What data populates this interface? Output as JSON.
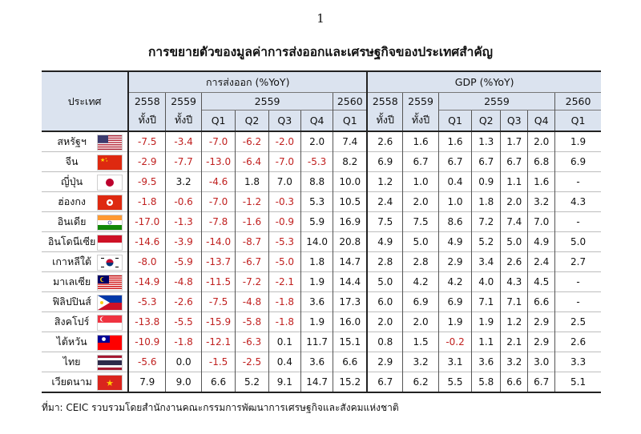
{
  "page_number": "1",
  "title": "การขยายตัวของมูลค่าการส่งออกและเศรษฐกิจของประเทศสำคัญ",
  "header": {
    "country": "ประเทศ",
    "exports_group": "การส่งออก (%YoY)",
    "gdp_group": "GDP (%YoY)",
    "years": {
      "y2558": "2558",
      "y2559": "2559",
      "y2560": "2560"
    },
    "full_year": "ทั้งปี",
    "quarters": {
      "q1": "Q1",
      "q2": "Q2",
      "q3": "Q3",
      "q4": "Q4"
    }
  },
  "rows": [
    {
      "country": "สหรัฐฯ",
      "flag": "us-flag",
      "exports": [
        "-7.5",
        "-3.4",
        "-7.0",
        "-6.2",
        "-2.0",
        "2.0",
        "7.4"
      ],
      "gdp": [
        "2.6",
        "1.6",
        "1.6",
        "1.3",
        "1.7",
        "2.0",
        "1.9"
      ]
    },
    {
      "country": "จีน",
      "flag": "china-flag",
      "exports": [
        "-2.9",
        "-7.7",
        "-13.0",
        "-6.4",
        "-7.0",
        "-5.3",
        "8.2"
      ],
      "gdp": [
        "6.9",
        "6.7",
        "6.7",
        "6.7",
        "6.7",
        "6.8",
        "6.9"
      ]
    },
    {
      "country": "ญี่ปุ่น",
      "flag": "japan-flag",
      "exports": [
        "-9.5",
        "3.2",
        "-4.6",
        "1.8",
        "7.0",
        "8.8",
        "10.0"
      ],
      "gdp": [
        "1.2",
        "1.0",
        "0.4",
        "0.9",
        "1.1",
        "1.6",
        "-"
      ]
    },
    {
      "country": "ฮ่องกง",
      "flag": "hong-kong-flag",
      "exports": [
        "-1.8",
        "-0.6",
        "-7.0",
        "-1.2",
        "-0.3",
        "5.3",
        "10.5"
      ],
      "gdp": [
        "2.4",
        "2.0",
        "1.0",
        "1.8",
        "2.0",
        "3.2",
        "4.3"
      ]
    },
    {
      "country": "อินเดีย",
      "flag": "india-flag",
      "exports": [
        "-17.0",
        "-1.3",
        "-7.8",
        "-1.6",
        "-0.9",
        "5.9",
        "16.9"
      ],
      "gdp": [
        "7.5",
        "7.5",
        "8.6",
        "7.2",
        "7.4",
        "7.0",
        "-"
      ]
    },
    {
      "country": "อินโดนีเซีย",
      "flag": "indonesia-flag",
      "exports": [
        "-14.6",
        "-3.9",
        "-14.0",
        "-8.7",
        "-5.3",
        "14.0",
        "20.8"
      ],
      "gdp": [
        "4.9",
        "5.0",
        "4.9",
        "5.2",
        "5.0",
        "4.9",
        "5.0"
      ]
    },
    {
      "country": "เกาหลีใต้",
      "flag": "south-korea-flag",
      "exports": [
        "-8.0",
        "-5.9",
        "-13.7",
        "-6.7",
        "-5.0",
        "1.8",
        "14.7"
      ],
      "gdp": [
        "2.8",
        "2.8",
        "2.9",
        "3.4",
        "2.6",
        "2.4",
        "2.7"
      ]
    },
    {
      "country": "มาเลเซีย",
      "flag": "malaysia-flag",
      "exports": [
        "-14.9",
        "-4.8",
        "-11.5",
        "-7.2",
        "-2.1",
        "1.9",
        "14.4"
      ],
      "gdp": [
        "5.0",
        "4.2",
        "4.2",
        "4.0",
        "4.3",
        "4.5",
        "-"
      ]
    },
    {
      "country": "ฟิลิปปินส์",
      "flag": "philippines-flag",
      "exports": [
        "-5.3",
        "-2.6",
        "-7.5",
        "-4.8",
        "-1.8",
        "3.6",
        "17.3"
      ],
      "gdp": [
        "6.0",
        "6.9",
        "6.9",
        "7.1",
        "7.1",
        "6.6",
        "-"
      ]
    },
    {
      "country": "สิงคโปร์",
      "flag": "singapore-flag",
      "exports": [
        "-13.8",
        "-5.5",
        "-15.9",
        "-5.8",
        "-1.8",
        "1.9",
        "16.0"
      ],
      "gdp": [
        "2.0",
        "2.0",
        "1.9",
        "1.9",
        "1.2",
        "2.9",
        "2.5"
      ]
    },
    {
      "country": "ไต้หวัน",
      "flag": "taiwan-flag",
      "exports": [
        "-10.9",
        "-1.8",
        "-12.1",
        "-6.3",
        "0.1",
        "11.7",
        "15.1"
      ],
      "gdp": [
        "0.8",
        "1.5",
        "-0.2",
        "1.1",
        "2.1",
        "2.9",
        "2.6"
      ]
    },
    {
      "country": "ไทย",
      "flag": "thailand-flag",
      "exports": [
        "-5.6",
        "0.0",
        "-1.5",
        "-2.5",
        "0.4",
        "3.6",
        "6.6"
      ],
      "gdp": [
        "2.9",
        "3.2",
        "3.1",
        "3.6",
        "3.2",
        "3.0",
        "3.3"
      ]
    },
    {
      "country": "เวียดนาม",
      "flag": "vietnam-flag",
      "exports": [
        "7.9",
        "9.0",
        "6.6",
        "5.2",
        "9.1",
        "14.7",
        "15.2"
      ],
      "gdp": [
        "6.7",
        "6.2",
        "5.5",
        "5.8",
        "6.6",
        "6.7",
        "5.1"
      ]
    }
  ],
  "colors": {
    "negative": "#c0201f",
    "header_bg": "#dbe3ef"
  },
  "source": "ที่มา: CEIC รวบรวมโดยสำนักงานคณะกรรมการพัฒนาการเศรษฐกิจและสังคมแห่งชาติ"
}
